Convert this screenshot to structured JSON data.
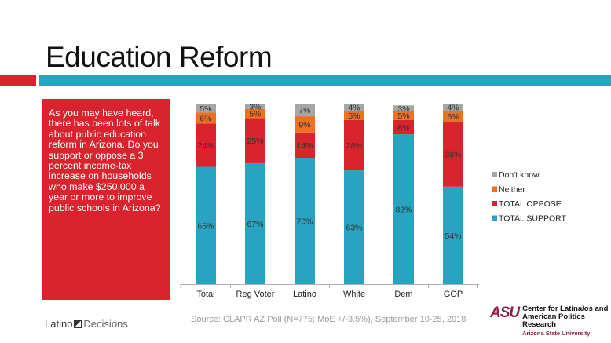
{
  "slide": {
    "title": "Education Reform",
    "question": "As you may have heard, there has been lots of talk about public education reform in Arizona. Do you support or oppose a 3 percent income-tax increase on households who make $250,000 a year or more to improve public schools in Arizona?",
    "source": "Source: CLAPR AZ Poll (N=775; MoE +/-3.5%), September 10-25, 2018",
    "logo_left": {
      "part1": "Latino",
      "part2": "Decisions"
    },
    "logo_right": {
      "mark": "ASU",
      "line1": "Center for Latina/os and",
      "line2": "American Politics Research",
      "line3": "Arizona State University"
    }
  },
  "colors": {
    "accent_red": "#d9232d",
    "accent_blue": "#2aa3c0",
    "support": "#2aa3c0",
    "oppose": "#d9232d",
    "neither": "#f07022",
    "dont_know": "#a6a6a6"
  },
  "chart_data": {
    "type": "bar",
    "stacked": true,
    "percent_stacked": true,
    "categories": [
      "Total",
      "Reg Voter",
      "Latino",
      "White",
      "Dem",
      "GOP"
    ],
    "series": [
      {
        "name": "TOTAL SUPPORT",
        "color": "#2aa3c0",
        "values": [
          65,
          67,
          70,
          63,
          83,
          54
        ],
        "labels": [
          "65%",
          "67%",
          "70%",
          "63%",
          "83%",
          "54%"
        ]
      },
      {
        "name": "TOTAL OPPOSE",
        "color": "#d9232d",
        "values": [
          24,
          25,
          14,
          28,
          8,
          36
        ],
        "labels": [
          "24%",
          "25%",
          "14%",
          "28%",
          "8%",
          "36%"
        ]
      },
      {
        "name": "Neither",
        "color": "#f07022",
        "values": [
          6,
          5,
          9,
          5,
          5,
          6
        ],
        "labels": [
          "6%",
          "5%",
          "9%",
          "5%",
          "5%",
          "6%"
        ]
      },
      {
        "name": "Don't know",
        "color": "#a6a6a6",
        "values": [
          5,
          3,
          7,
          4,
          3,
          4
        ],
        "labels": [
          "5%",
          "3%",
          "7%",
          "4%",
          "3%",
          "4%"
        ]
      }
    ],
    "legend_order": [
      "Don't know",
      "Neither",
      "TOTAL OPPOSE",
      "TOTAL SUPPORT"
    ],
    "legend_position": "right",
    "ylim": [
      0,
      100
    ],
    "grid": false,
    "title": "",
    "xlabel": "",
    "ylabel": ""
  }
}
